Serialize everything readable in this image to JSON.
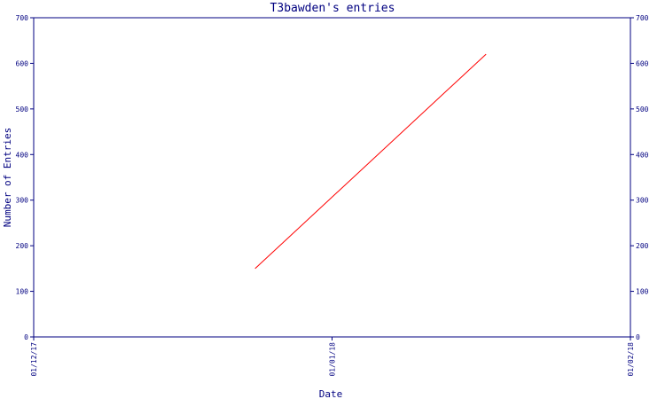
{
  "colors": {
    "axis": "#000080",
    "text": "#000080",
    "series": "#ff0000",
    "background": "#ffffff"
  },
  "chart_data": {
    "type": "line",
    "title": "T3bawden's entries",
    "xlabel": "Date",
    "ylabel": "Number of Entries",
    "x_ticks": [
      "01/12/17",
      "01/01/18",
      "01/02/18"
    ],
    "xlim": [
      "2017-12-01",
      "2018-02-01"
    ],
    "ylim": [
      0,
      700
    ],
    "y_ticks": [
      0,
      100,
      200,
      300,
      400,
      500,
      600,
      700
    ],
    "grid": false,
    "secondary_y_axis": true,
    "series": [
      {
        "color": "#ff0000",
        "points": [
          {
            "x": "2017-12-24",
            "y": 150
          },
          {
            "x": "2018-01-17",
            "y": 620
          }
        ]
      }
    ]
  }
}
